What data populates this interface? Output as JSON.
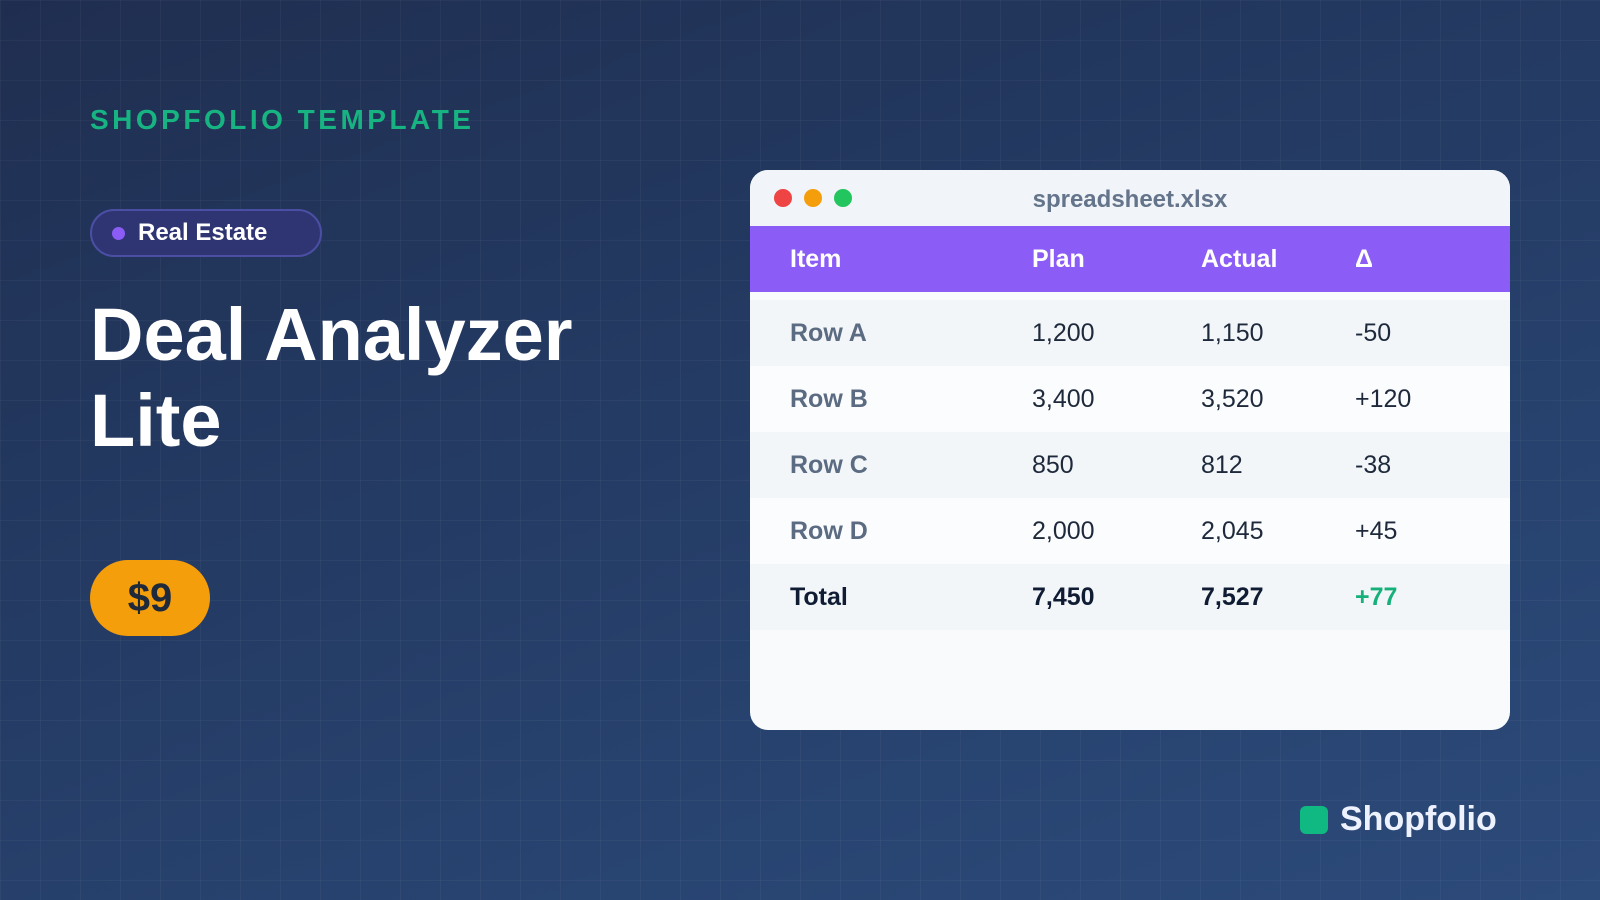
{
  "eyebrow": "SHOPFOLIO TEMPLATE",
  "tag": "Real Estate",
  "title": "Deal Analyzer Lite",
  "price": "$9",
  "window": {
    "filename": "spreadsheet.xlsx",
    "table": {
      "header": [
        "Item",
        "Plan",
        "Actual",
        "Δ"
      ],
      "rows": [
        [
          "Row A",
          "1,200",
          "1,150",
          "-50"
        ],
        [
          "Row B",
          "3,400",
          "3,520",
          "+120"
        ],
        [
          "Row C",
          "850",
          "812",
          "-38"
        ],
        [
          "Row D",
          "2,000",
          "2,045",
          "+45"
        ]
      ],
      "total": [
        "Total",
        "7,450",
        "7,527",
        "+77"
      ]
    }
  },
  "brand": "Shopfolio"
}
